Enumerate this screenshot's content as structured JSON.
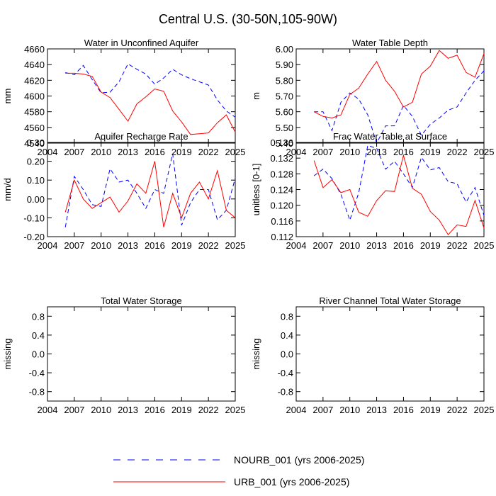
{
  "figure_title": "Central U.S. (30-50N,105-90W)",
  "legend": {
    "entries": [
      {
        "label": "NOURB_001 (yrs 2006-2025)",
        "color": "#0000ff",
        "style": "dashed"
      },
      {
        "label": "URB_001 (yrs 2006-2025)",
        "color": "#ff0000",
        "style": "solid"
      }
    ]
  },
  "colors": {
    "nourb": "#0000ff",
    "urb": "#ff0000",
    "axis": "#000000"
  },
  "chart_data": [
    {
      "type": "line",
      "title": "Water in Unconfined Aquifer",
      "xlabel": "",
      "ylabel": "mm",
      "xlim": [
        2004,
        2025
      ],
      "ylim": [
        4540,
        4660
      ],
      "xticks": [
        2004,
        2007,
        2010,
        2013,
        2016,
        2019,
        2022,
        2025
      ],
      "yticks": [
        4540,
        4560,
        4580,
        4600,
        4620,
        4640,
        4660
      ],
      "ytick_labels": [
        "4540",
        "4560",
        "4580",
        "4600",
        "4620",
        "4640",
        "4660"
      ],
      "x": [
        2006,
        2007,
        2008,
        2009,
        2010,
        2011,
        2012,
        2013,
        2014,
        2015,
        2016,
        2017,
        2018,
        2019,
        2020,
        2021,
        2022,
        2023,
        2024,
        2025
      ],
      "series": [
        {
          "name": "NOURB_001",
          "values": [
            4630,
            4627,
            4639,
            4621,
            4604,
            4605,
            4618,
            4641,
            4634,
            4628,
            4615,
            4623,
            4634,
            4627,
            4622,
            4618,
            4614,
            4595,
            4581,
            4573
          ]
        },
        {
          "name": "URB_001",
          "values": [
            4629,
            4629,
            4628,
            4625,
            4605,
            4598,
            4583,
            4568,
            4590,
            4599,
            4609,
            4606,
            4581,
            4567,
            4551,
            4552,
            4553,
            4566,
            4576,
            4554
          ]
        }
      ]
    },
    {
      "type": "line",
      "title": "Water Table Depth",
      "xlabel": "",
      "ylabel": "m",
      "xlim": [
        2004,
        2025
      ],
      "ylim": [
        5.4,
        6.0
      ],
      "xticks": [
        2004,
        2007,
        2010,
        2013,
        2016,
        2019,
        2022,
        2025
      ],
      "yticks": [
        5.4,
        5.5,
        5.6,
        5.7,
        5.8,
        5.9,
        6.0
      ],
      "ytick_labels": [
        "5.40",
        "5.50",
        "5.60",
        "5.70",
        "5.80",
        "5.90",
        "6.00"
      ],
      "x": [
        2006,
        2007,
        2008,
        2009,
        2010,
        2011,
        2012,
        2013,
        2014,
        2015,
        2016,
        2017,
        2018,
        2019,
        2020,
        2021,
        2022,
        2023,
        2024,
        2025
      ],
      "series": [
        {
          "name": "NOURB_001",
          "values": [
            5.6,
            5.6,
            5.48,
            5.66,
            5.72,
            5.68,
            5.58,
            5.4,
            5.51,
            5.51,
            5.64,
            5.57,
            5.45,
            5.52,
            5.56,
            5.61,
            5.63,
            5.72,
            5.8,
            5.86
          ]
        },
        {
          "name": "URB_001",
          "values": [
            5.6,
            5.57,
            5.56,
            5.58,
            5.71,
            5.75,
            5.84,
            5.92,
            5.8,
            5.73,
            5.63,
            5.66,
            5.84,
            5.89,
            5.99,
            5.94,
            5.96,
            5.85,
            5.82,
            5.97
          ]
        }
      ]
    },
    {
      "type": "line",
      "title": "Aquifer Recharge Rate",
      "xlabel": "",
      "ylabel": "mm/d",
      "xlim": [
        2004,
        2025
      ],
      "ylim": [
        -0.2,
        0.3
      ],
      "xticks": [
        2004,
        2007,
        2010,
        2013,
        2016,
        2019,
        2022,
        2025
      ],
      "yticks": [
        -0.2,
        -0.1,
        0.0,
        0.1,
        0.2,
        0.3
      ],
      "ytick_labels": [
        "-0.20",
        "-0.10",
        "0.00",
        "0.10",
        "0.20",
        "0.30"
      ],
      "x": [
        2006,
        2007,
        2008,
        2009,
        2010,
        2011,
        2012,
        2013,
        2014,
        2015,
        2016,
        2017,
        2018,
        2019,
        2020,
        2021,
        2022,
        2023,
        2024,
        2025
      ],
      "series": [
        {
          "name": "NOURB_001",
          "values": [
            -0.15,
            0.12,
            0.05,
            -0.03,
            -0.04,
            0.16,
            0.09,
            0.1,
            0.03,
            -0.05,
            0.05,
            0.03,
            0.24,
            -0.14,
            -0.02,
            0.05,
            0.05,
            -0.11,
            -0.06,
            0.11
          ]
        },
        {
          "name": "URB_001",
          "values": [
            -0.07,
            0.1,
            0.0,
            -0.05,
            -0.02,
            0.01,
            -0.07,
            -0.01,
            0.08,
            0.03,
            0.2,
            -0.15,
            0.03,
            -0.1,
            0.03,
            0.09,
            0.0,
            0.15,
            -0.06,
            -0.1
          ]
        }
      ]
    },
    {
      "type": "line",
      "title": "Frac Water Table at Surface",
      "xlabel": "",
      "ylabel": "unitless [0-1]",
      "xlim": [
        2004,
        2025
      ],
      "ylim": [
        0.112,
        0.136
      ],
      "xticks": [
        2004,
        2007,
        2010,
        2013,
        2016,
        2019,
        2022,
        2025
      ],
      "yticks": [
        0.112,
        0.116,
        0.12,
        0.124,
        0.128,
        0.132,
        0.136
      ],
      "ytick_labels": [
        "0.112",
        "0.116",
        "0.120",
        "0.124",
        "0.128",
        "0.132",
        "0.136"
      ],
      "x": [
        2006,
        2007,
        2008,
        2009,
        2010,
        2011,
        2012,
        2013,
        2014,
        2015,
        2016,
        2017,
        2018,
        2019,
        2020,
        2021,
        2022,
        2023,
        2024,
        2025
      ],
      "series": [
        {
          "name": "NOURB_001",
          "values": [
            0.1275,
            0.1292,
            0.1268,
            0.1228,
            0.1162,
            0.1232,
            0.1352,
            0.1345,
            0.1292,
            0.1312,
            0.128,
            0.1245,
            0.1322,
            0.129,
            0.1296,
            0.126,
            0.1255,
            0.1208,
            0.1245,
            0.1174
          ]
        },
        {
          "name": "URB_001",
          "values": [
            0.1314,
            0.1245,
            0.1265,
            0.1232,
            0.124,
            0.1182,
            0.1172,
            0.1212,
            0.1237,
            0.1235,
            0.1327,
            0.1243,
            0.1228,
            0.1184,
            0.1162,
            0.1125,
            0.115,
            0.1146,
            0.1212,
            0.1142
          ]
        }
      ]
    },
    {
      "type": "line",
      "title": "Total Water Storage",
      "xlabel": "",
      "ylabel": "missing",
      "xlim": [
        2004,
        2025
      ],
      "ylim": [
        -1.0,
        1.0
      ],
      "xticks": [
        2004,
        2007,
        2010,
        2013,
        2016,
        2019,
        2022,
        2025
      ],
      "yticks": [
        -0.8,
        -0.4,
        0.0,
        0.4,
        0.8
      ],
      "ytick_labels": [
        "-0.8",
        "-0.4",
        "0.0",
        "0.4",
        "0.8"
      ],
      "x": [],
      "series": []
    },
    {
      "type": "line",
      "title": "River Channel Total Water Storage",
      "xlabel": "",
      "ylabel": "missing",
      "xlim": [
        2004,
        2025
      ],
      "ylim": [
        -1.0,
        1.0
      ],
      "xticks": [
        2004,
        2007,
        2010,
        2013,
        2016,
        2019,
        2022,
        2025
      ],
      "yticks": [
        -0.8,
        -0.4,
        0.0,
        0.4,
        0.8
      ],
      "ytick_labels": [
        "-0.8",
        "-0.4",
        "0.0",
        "0.4",
        "0.8"
      ],
      "x": [],
      "series": []
    }
  ]
}
